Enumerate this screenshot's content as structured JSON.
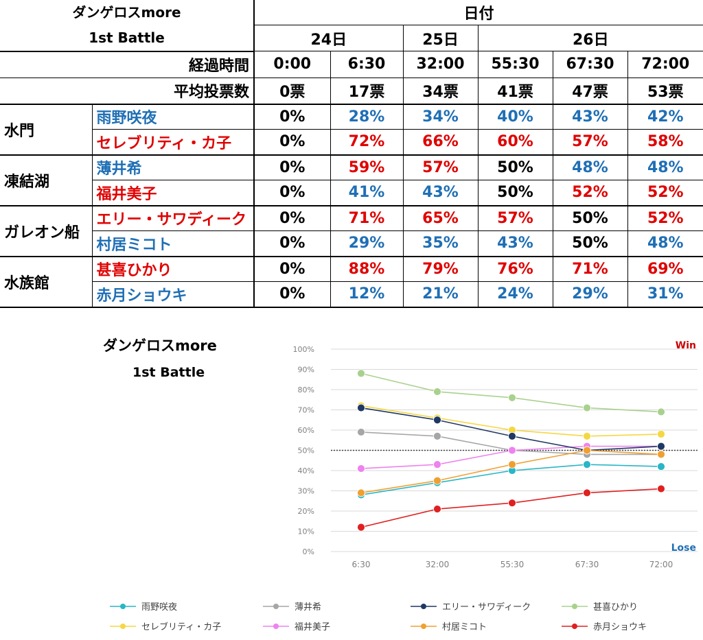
{
  "table": {
    "title_line1": "ダンゲロスmore",
    "title_line2": "1st Battle",
    "date_header": "日付",
    "days": [
      "24日",
      "25日",
      "26日"
    ],
    "elapsed_label": "経過時間",
    "elapsed": [
      "0:00",
      "6:30",
      "32:00",
      "55:30",
      "67:30",
      "72:00"
    ],
    "avg_votes_label": "平均投票数",
    "avg_votes": [
      "0票",
      "17票",
      "34票",
      "41票",
      "47票",
      "53票"
    ],
    "groups": [
      {
        "name": "水門",
        "rows": [
          {
            "name": "雨野咲夜",
            "color": "blue",
            "values": [
              "0%",
              "28%",
              "34%",
              "40%",
              "43%",
              "42%"
            ],
            "colors": [
              "blk",
              "blue",
              "blue",
              "blue",
              "blue",
              "blue"
            ]
          },
          {
            "name": "セレブリティ・カ子",
            "color": "red",
            "values": [
              "0%",
              "72%",
              "66%",
              "60%",
              "57%",
              "58%"
            ],
            "colors": [
              "blk",
              "red",
              "red",
              "red",
              "red",
              "red"
            ]
          }
        ]
      },
      {
        "name": "凍結湖",
        "rows": [
          {
            "name": "薄井希",
            "color": "blue",
            "values": [
              "0%",
              "59%",
              "57%",
              "50%",
              "48%",
              "48%"
            ],
            "colors": [
              "blk",
              "red",
              "red",
              "blk",
              "blue",
              "blue"
            ]
          },
          {
            "name": "福井美子",
            "color": "red",
            "values": [
              "0%",
              "41%",
              "43%",
              "50%",
              "52%",
              "52%"
            ],
            "colors": [
              "blk",
              "blue",
              "blue",
              "blk",
              "red",
              "red"
            ]
          }
        ]
      },
      {
        "name": "ガレオン船",
        "rows": [
          {
            "name": "エリー・サワディーク",
            "color": "red",
            "values": [
              "0%",
              "71%",
              "65%",
              "57%",
              "50%",
              "52%"
            ],
            "colors": [
              "blk",
              "red",
              "red",
              "red",
              "blk",
              "red"
            ]
          },
          {
            "name": "村居ミコト",
            "color": "blue",
            "values": [
              "0%",
              "29%",
              "35%",
              "43%",
              "50%",
              "48%"
            ],
            "colors": [
              "blk",
              "blue",
              "blue",
              "blue",
              "blk",
              "blue"
            ]
          }
        ]
      },
      {
        "name": "水族館",
        "rows": [
          {
            "name": "甚喜ひかり",
            "color": "red",
            "values": [
              "0%",
              "88%",
              "79%",
              "76%",
              "71%",
              "69%"
            ],
            "colors": [
              "blk",
              "red",
              "red",
              "red",
              "red",
              "red"
            ]
          },
          {
            "name": "赤月ショウキ",
            "color": "blue",
            "values": [
              "0%",
              "12%",
              "21%",
              "24%",
              "29%",
              "31%"
            ],
            "colors": [
              "blk",
              "blue",
              "blue",
              "blue",
              "blue",
              "blue"
            ]
          }
        ]
      }
    ]
  },
  "chart_data": {
    "type": "line",
    "title": "ダンゲロスmore",
    "subtitle": "1st Battle",
    "x": [
      "6:30",
      "32:00",
      "55:30",
      "67:30",
      "72:00"
    ],
    "ylim": [
      0,
      100
    ],
    "yticks": [
      "0%",
      "10%",
      "20%",
      "30%",
      "40%",
      "50%",
      "60%",
      "70%",
      "80%",
      "90%",
      "100%"
    ],
    "threshold": 50,
    "annotations": {
      "win": "Win",
      "lose": "Lose"
    },
    "win_color": "#cc0000",
    "lose_color": "#1f6fb5",
    "series": [
      {
        "name": "雨野咲夜",
        "color": "#29b6c6",
        "values": [
          28,
          34,
          40,
          43,
          42
        ]
      },
      {
        "name": "セレブリティ・カ子",
        "color": "#f5d742",
        "values": [
          72,
          66,
          60,
          57,
          58
        ]
      },
      {
        "name": "薄井希",
        "color": "#a6a6a6",
        "values": [
          59,
          57,
          50,
          48,
          48
        ]
      },
      {
        "name": "福井美子",
        "color": "#ee82ee",
        "values": [
          41,
          43,
          50,
          52,
          52
        ]
      },
      {
        "name": "エリー・サワディーク",
        "color": "#1f3864",
        "values": [
          71,
          65,
          57,
          50,
          52
        ]
      },
      {
        "name": "村居ミコト",
        "color": "#f0a030",
        "values": [
          29,
          35,
          43,
          50,
          48
        ]
      },
      {
        "name": "甚喜ひかり",
        "color": "#a9d18e",
        "values": [
          88,
          79,
          76,
          71,
          69
        ]
      },
      {
        "name": "赤月ショウキ",
        "color": "#e02020",
        "values": [
          12,
          21,
          24,
          29,
          31
        ]
      }
    ],
    "legend_order": [
      [
        "雨野咲夜",
        "薄井希",
        "エリー・サワディーク",
        "甚喜ひかり"
      ],
      [
        "セレブリティ・カ子",
        "福井美子",
        "村居ミコト",
        "赤月ショウキ"
      ]
    ],
    "legend_position": "bottom"
  }
}
